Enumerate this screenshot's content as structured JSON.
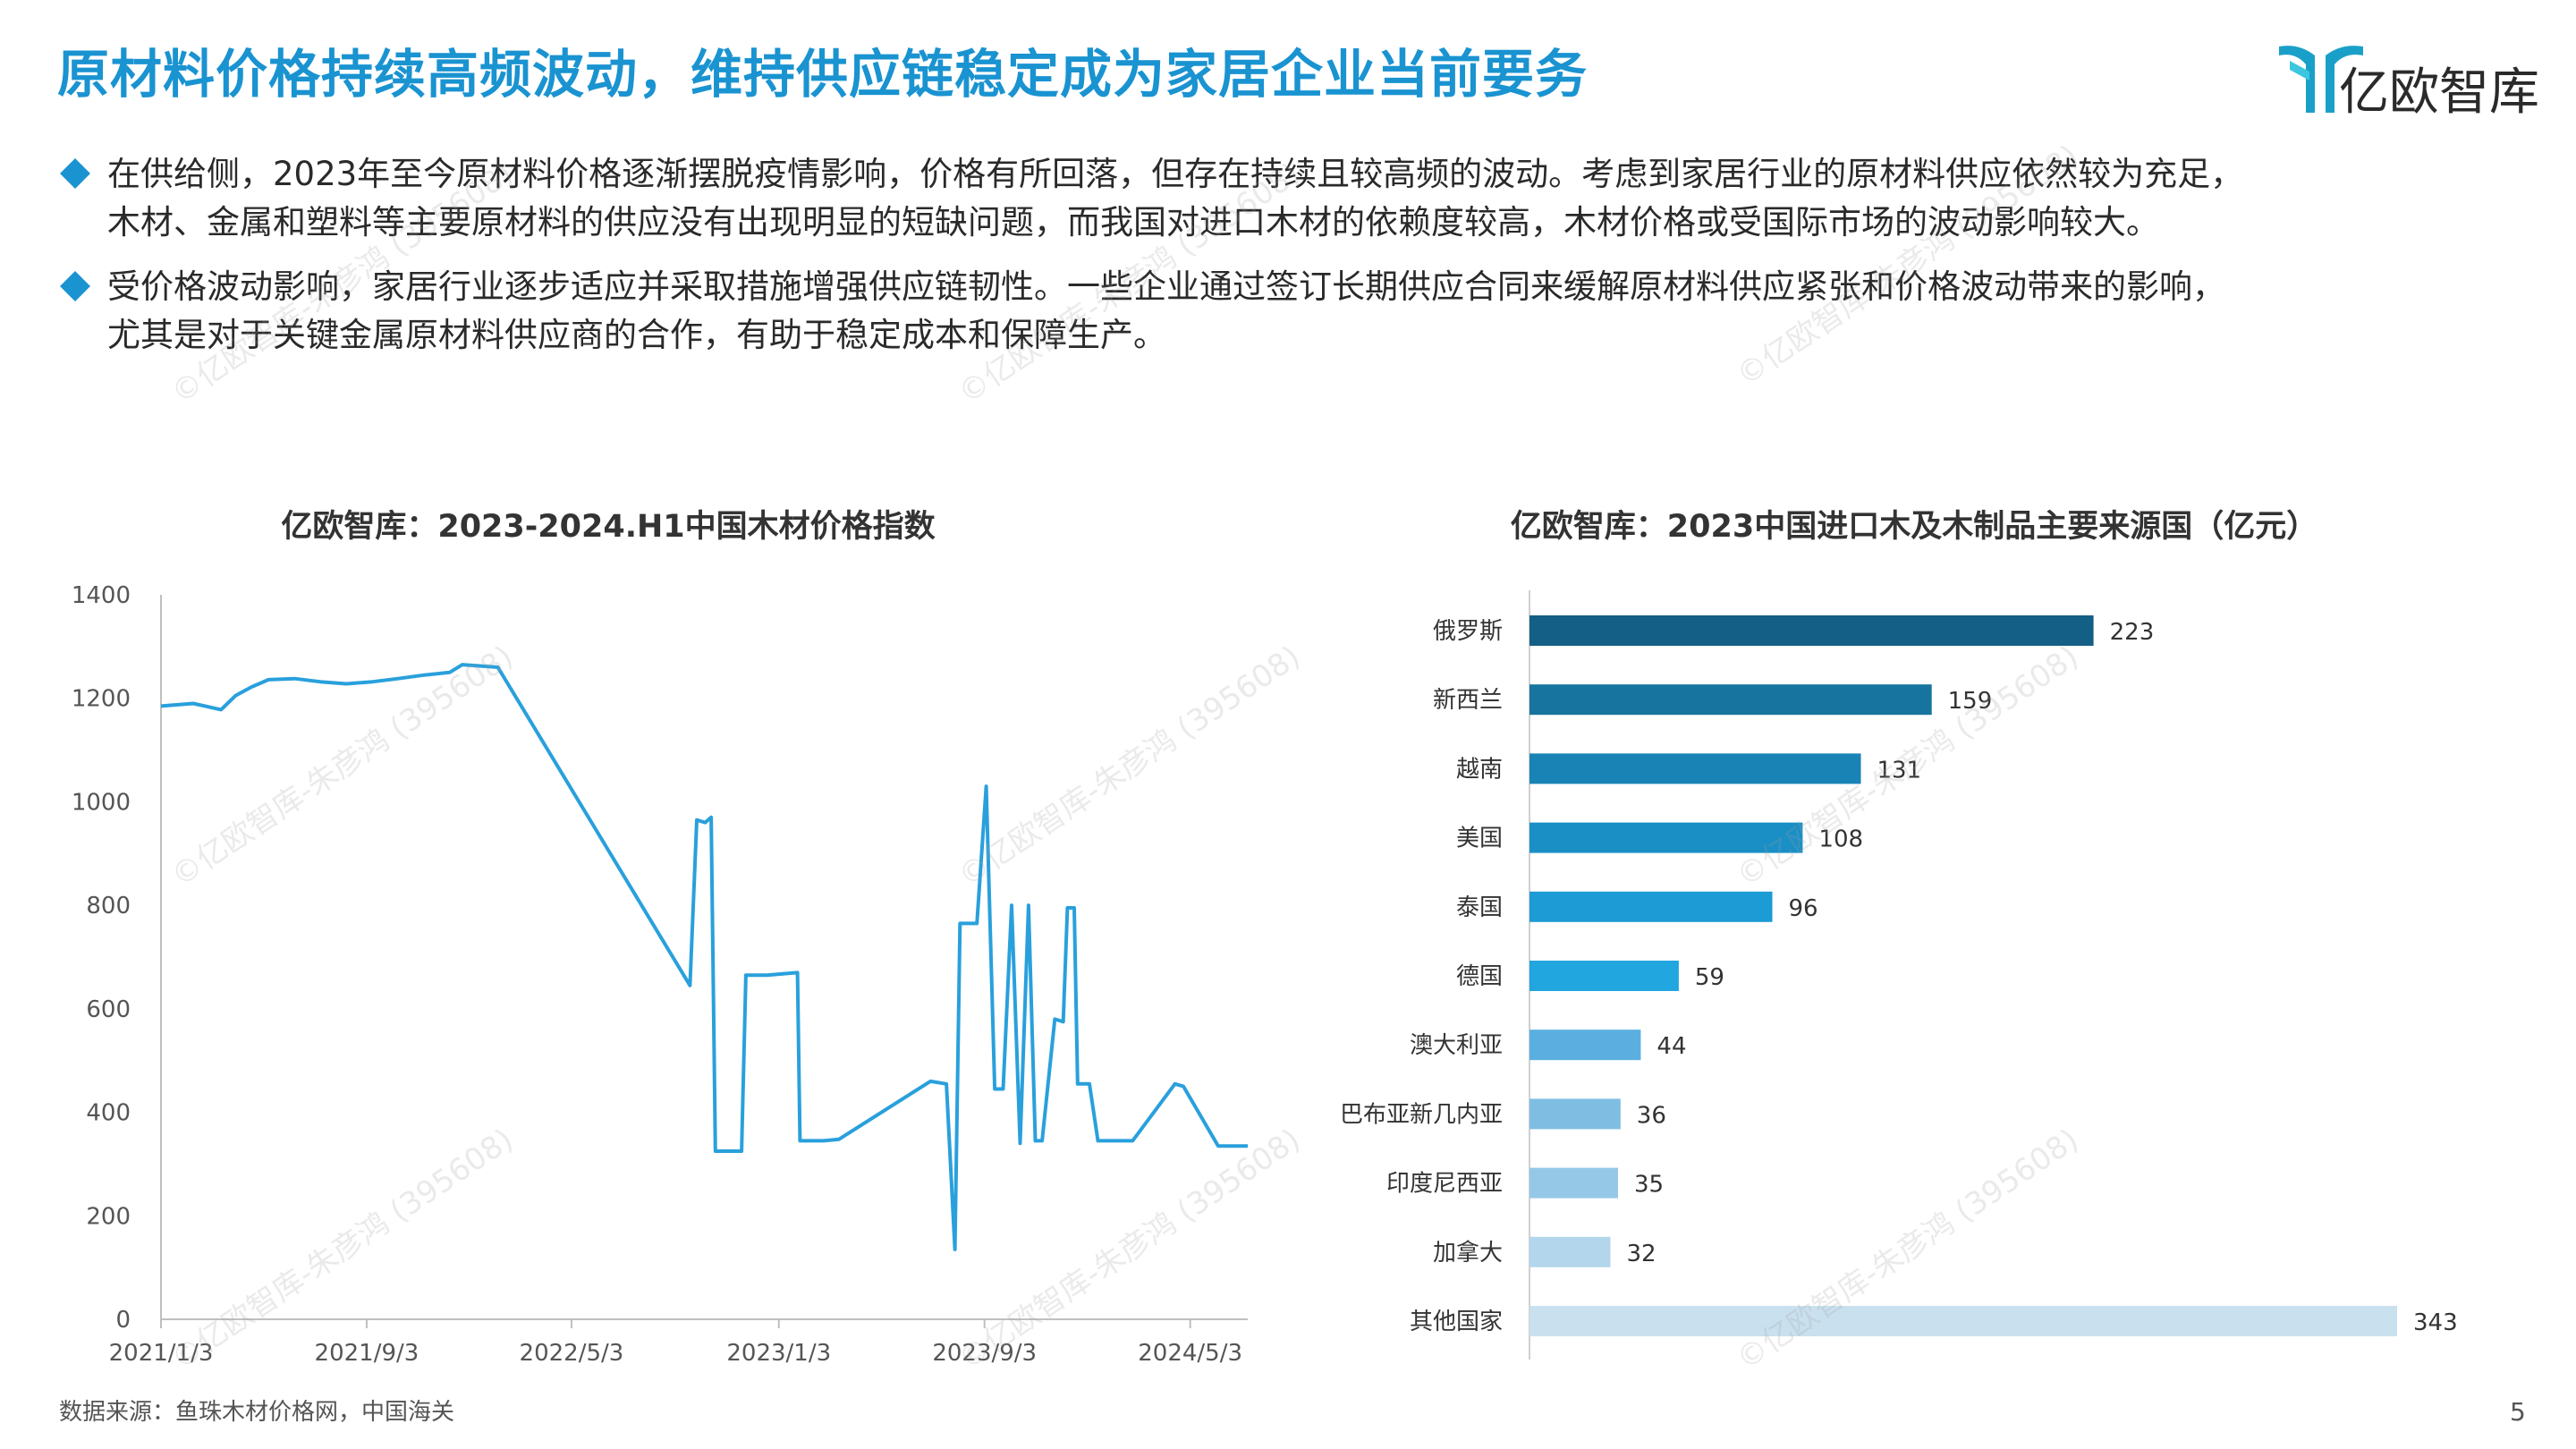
{
  "header": {
    "title": "原材料价格持续高频波动，维持供应链稳定成为家居企业当前要务",
    "logo_text": "亿欧智库"
  },
  "bullets": [
    {
      "line1": "在供给侧，2023年至今原材料价格逐渐摆脱疫情影响，价格有所回落，但存在持续且较高频的波动。考虑到家居行业的原材料供应依然较为充足，",
      "line2": "木材、金属和塑料等主要原材料的供应没有出现明显的短缺问题，而我国对进口木材的依赖度较高，木材价格或受国际市场的波动影响较大。"
    },
    {
      "line1": "受价格波动影响，家居行业逐步适应并采取措施增强供应链韧性。一些企业通过签订长期供应合同来缓解原材料供应紧张和价格波动带来的影响，",
      "line2": "尤其是对于关键金属原材料供应商的合作，有助于稳定成本和保障生产。"
    }
  ],
  "footer": {
    "source": "数据来源：鱼珠木材价格网，中国海关",
    "page_number": "5"
  },
  "watermark": "©亿欧智库-朱彦鸿 (395608)",
  "chart_data": [
    {
      "type": "line",
      "title": "亿欧智库：2023-2024.H1中国木材价格指数",
      "xlabel": "",
      "ylabel": "",
      "x_ticks": [
        "2021/1/3",
        "2021/9/3",
        "2022/5/3",
        "2023/1/3",
        "2023/9/3",
        "2024/5/3"
      ],
      "x_range": [
        "2021-01-03",
        "2024-07-10"
      ],
      "ylim": [
        0,
        1400
      ],
      "y_ticks": [
        0,
        200,
        400,
        600,
        800,
        1000,
        1200,
        1400
      ],
      "color": "#29a0dc",
      "grid": false,
      "points": [
        [
          "2021-01-03",
          1185
        ],
        [
          "2021-02-10",
          1190
        ],
        [
          "2021-03-15",
          1178
        ],
        [
          "2021-04-01",
          1205
        ],
        [
          "2021-04-20",
          1222
        ],
        [
          "2021-05-10",
          1236
        ],
        [
          "2021-06-10",
          1238
        ],
        [
          "2021-07-10",
          1232
        ],
        [
          "2021-08-10",
          1228
        ],
        [
          "2021-09-10",
          1232
        ],
        [
          "2021-10-10",
          1238
        ],
        [
          "2021-11-10",
          1245
        ],
        [
          "2021-12-10",
          1250
        ],
        [
          "2021-12-25",
          1265
        ],
        [
          "2022-02-05",
          1260
        ],
        [
          "2022-09-20",
          645
        ],
        [
          "2022-09-28",
          965
        ],
        [
          "2022-10-08",
          960
        ],
        [
          "2022-10-15",
          970
        ],
        [
          "2022-10-20",
          325
        ],
        [
          "2022-11-20",
          325
        ],
        [
          "2022-11-25",
          665
        ],
        [
          "2022-12-20",
          665
        ],
        [
          "2023-01-25",
          670
        ],
        [
          "2023-01-28",
          345
        ],
        [
          "2023-02-25",
          345
        ],
        [
          "2023-03-15",
          348
        ],
        [
          "2023-07-01",
          460
        ],
        [
          "2023-07-20",
          455
        ],
        [
          "2023-07-30",
          135
        ],
        [
          "2023-08-05",
          765
        ],
        [
          "2023-08-25",
          765
        ],
        [
          "2023-09-05",
          1030
        ],
        [
          "2023-09-15",
          445
        ],
        [
          "2023-09-25",
          445
        ],
        [
          "2023-10-05",
          800
        ],
        [
          "2023-10-15",
          340
        ],
        [
          "2023-10-25",
          800
        ],
        [
          "2023-11-02",
          345
        ],
        [
          "2023-11-10",
          345
        ],
        [
          "2023-11-25",
          580
        ],
        [
          "2023-12-05",
          575
        ],
        [
          "2023-12-10",
          795
        ],
        [
          "2023-12-18",
          795
        ],
        [
          "2023-12-22",
          455
        ],
        [
          "2024-01-05",
          455
        ],
        [
          "2024-01-15",
          345
        ],
        [
          "2024-02-25",
          345
        ],
        [
          "2024-04-15",
          455
        ],
        [
          "2024-04-25",
          450
        ],
        [
          "2024-06-05",
          335
        ],
        [
          "2024-07-10",
          335
        ]
      ]
    },
    {
      "type": "bar",
      "orientation": "horizontal",
      "title": "亿欧智库：2023中国进口木及木制品主要来源国（亿元）",
      "xlabel": "",
      "ylabel": "",
      "grid": false,
      "categories": [
        "俄罗斯",
        "新西兰",
        "越南",
        "美国",
        "泰国",
        "德国",
        "澳大利亚",
        "巴布亚新几内亚",
        "印度尼西亚",
        "加拿大",
        "其他国家"
      ],
      "values": [
        223,
        159,
        131,
        108,
        96,
        59,
        44,
        36,
        35,
        32,
        343
      ],
      "colors": [
        "#145f86",
        "#17749f",
        "#1a83b6",
        "#1a8fc6",
        "#1c9bd5",
        "#21a6df",
        "#5aafe0",
        "#7fbde3",
        "#95c8e6",
        "#b3d6ec",
        "#c9e0ef"
      ]
    }
  ]
}
